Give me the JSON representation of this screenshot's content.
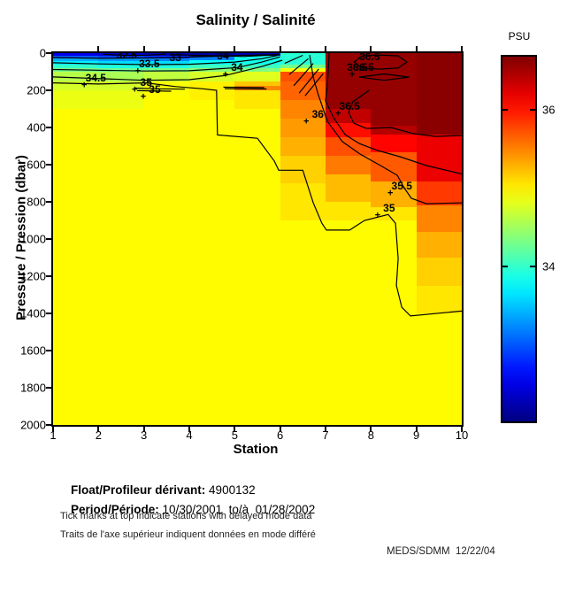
{
  "figure": {
    "footer": {
      "float_label": "Float/Profileur dérivant:",
      "float_value": " 4900132",
      "period_label": "Period/Période:",
      "period_value": " 10/30/2001  to/à  01/28/2002",
      "note_en": "Tick marks at top indicate stations with delayed mode data",
      "note_fr": "Traits de l'axe supérieur indiquent données en mode différé",
      "credit": "MEDS/SDMM  12/22/04"
    }
  },
  "chart_data": {
    "type": "heatmap",
    "title": "Salinity / Salinité",
    "xlabel": "Station",
    "ylabel": "Pressure / Pression (dbar)",
    "xlim": [
      1,
      10
    ],
    "ylim": [
      0,
      2000
    ],
    "x_ticks": [
      1,
      2,
      3,
      4,
      5,
      6,
      7,
      8,
      9,
      10
    ],
    "y_ticks": [
      0,
      200,
      400,
      600,
      800,
      1000,
      1200,
      1400,
      1600,
      1800,
      2000
    ],
    "delayed_mode_top_ticks": [
      2,
      3,
      4,
      5,
      6,
      7,
      8,
      9,
      10
    ],
    "colorbar": {
      "label": "PSU",
      "ticks": [
        36,
        34
      ],
      "min": 32.0,
      "max": 36.7,
      "colormap": "jet"
    },
    "units": "PSU",
    "columns": [
      {
        "station_span": [
          1,
          2
        ],
        "segments": [
          [
            0,
            15,
            32.5
          ],
          [
            15,
            30,
            33.0
          ],
          [
            30,
            45,
            33.4
          ],
          [
            45,
            60,
            33.7
          ],
          [
            60,
            80,
            34.0
          ],
          [
            80,
            100,
            34.3
          ],
          [
            100,
            150,
            34.6
          ],
          [
            150,
            200,
            34.75
          ],
          [
            200,
            300,
            34.85
          ],
          [
            300,
            2000,
            34.95
          ]
        ]
      },
      {
        "station_span": [
          2,
          3
        ],
        "segments": [
          [
            0,
            15,
            32.4
          ],
          [
            15,
            30,
            32.9
          ],
          [
            30,
            45,
            33.3
          ],
          [
            45,
            60,
            33.6
          ],
          [
            60,
            80,
            33.9
          ],
          [
            80,
            100,
            34.25
          ],
          [
            100,
            150,
            34.55
          ],
          [
            150,
            200,
            34.75
          ],
          [
            200,
            300,
            34.85
          ],
          [
            300,
            2000,
            34.95
          ]
        ]
      },
      {
        "station_span": [
          3,
          4
        ],
        "segments": [
          [
            0,
            15,
            32.3
          ],
          [
            15,
            30,
            32.8
          ],
          [
            30,
            45,
            33.2
          ],
          [
            45,
            60,
            33.6
          ],
          [
            60,
            80,
            33.9
          ],
          [
            80,
            100,
            34.3
          ],
          [
            100,
            150,
            34.65
          ],
          [
            150,
            200,
            34.9
          ],
          [
            200,
            2000,
            34.95
          ]
        ]
      },
      {
        "station_span": [
          4,
          5
        ],
        "segments": [
          [
            0,
            20,
            32.15
          ],
          [
            20,
            40,
            33.2
          ],
          [
            40,
            60,
            33.8
          ],
          [
            60,
            80,
            34.05
          ],
          [
            80,
            100,
            34.4
          ],
          [
            100,
            150,
            34.75
          ],
          [
            150,
            250,
            35.0
          ],
          [
            250,
            2000,
            34.95
          ]
        ]
      },
      {
        "station_span": [
          5,
          6
        ],
        "segments": [
          [
            0,
            15,
            32.3
          ],
          [
            15,
            60,
            33.85
          ],
          [
            60,
            80,
            34.05
          ],
          [
            80,
            100,
            34.35
          ],
          [
            100,
            150,
            34.8
          ],
          [
            150,
            175,
            35.2
          ],
          [
            175,
            200,
            35.5
          ],
          [
            200,
            300,
            35.05
          ],
          [
            300,
            2000,
            34.95
          ]
        ]
      },
      {
        "station_span": [
          6,
          7
        ],
        "segments": [
          [
            0,
            60,
            33.95
          ],
          [
            60,
            80,
            34.3
          ],
          [
            80,
            100,
            34.9
          ],
          [
            100,
            150,
            35.75
          ],
          [
            150,
            250,
            35.65
          ],
          [
            250,
            350,
            35.5
          ],
          [
            350,
            450,
            35.4
          ],
          [
            450,
            550,
            35.3
          ],
          [
            550,
            700,
            35.15
          ],
          [
            700,
            900,
            35.05
          ],
          [
            900,
            2000,
            34.95
          ]
        ]
      },
      {
        "station_span": [
          7,
          8
        ],
        "segments": [
          [
            0,
            300,
            36.6
          ],
          [
            300,
            375,
            36.4
          ],
          [
            375,
            450,
            36.05
          ],
          [
            450,
            550,
            35.75
          ],
          [
            550,
            650,
            35.55
          ],
          [
            650,
            800,
            35.25
          ],
          [
            800,
            900,
            35.05
          ],
          [
            900,
            2000,
            34.95
          ]
        ]
      },
      {
        "station_span": [
          8,
          9
        ],
        "segments": [
          [
            0,
            390,
            36.6
          ],
          [
            390,
            440,
            36.45
          ],
          [
            440,
            535,
            36.1
          ],
          [
            535,
            690,
            35.7
          ],
          [
            690,
            830,
            35.3
          ],
          [
            830,
            900,
            35.05
          ],
          [
            900,
            2000,
            34.95
          ]
        ]
      },
      {
        "station_span": [
          9,
          10
        ],
        "segments": [
          [
            0,
            440,
            36.65
          ],
          [
            440,
            690,
            36.2
          ],
          [
            690,
            820,
            35.85
          ],
          [
            820,
            960,
            35.5
          ],
          [
            960,
            1100,
            35.3
          ],
          [
            1100,
            1250,
            35.15
          ],
          [
            1250,
            1400,
            35.05
          ],
          [
            1400,
            2000,
            34.95
          ]
        ]
      }
    ],
    "contours": [
      {
        "level": 32.5,
        "points": [
          [
            2.1,
            6
          ],
          [
            2.62,
            13
          ],
          [
            3.1,
            11
          ],
          [
            3.5,
            5
          ]
        ]
      },
      {
        "level": 33,
        "points": [
          [
            1,
            24
          ],
          [
            2,
            28
          ],
          [
            3,
            26
          ],
          [
            3.69,
            24
          ],
          [
            4.5,
            18
          ],
          [
            5.2,
            12
          ],
          [
            5.9,
            8
          ]
        ]
      },
      {
        "level": 33.5,
        "points": [
          [
            1,
            52
          ],
          [
            2,
            58
          ],
          [
            3.12,
            62
          ],
          [
            4,
            60
          ],
          [
            5,
            48
          ],
          [
            5.6,
            30
          ],
          [
            5.95,
            12
          ]
        ]
      },
      {
        "level": 34,
        "points": [
          [
            3.6,
            8
          ],
          [
            4.3,
            13
          ],
          [
            4.74,
            15
          ],
          [
            5.2,
            18
          ],
          [
            5.7,
            12
          ],
          [
            6.0,
            6
          ]
        ]
      },
      {
        "level": 34,
        "points": [
          [
            1,
            88
          ],
          [
            2,
            92
          ],
          [
            3,
            96
          ],
          [
            4,
            95
          ],
          [
            5.05,
            78
          ],
          [
            5.6,
            48
          ],
          [
            6.0,
            20
          ]
        ]
      },
      {
        "level": 34.5,
        "points": [
          [
            1,
            128
          ],
          [
            1.94,
            136
          ],
          [
            3,
            146
          ],
          [
            4,
            143
          ],
          [
            4.8,
            120
          ],
          [
            5.6,
            72
          ],
          [
            6.05,
            38
          ]
        ]
      },
      {
        "level": 35,
        "points": [
          [
            1,
            160
          ],
          [
            2,
            166
          ],
          [
            3.05,
            160
          ],
          [
            3.7,
            180
          ],
          [
            4.3,
            192
          ],
          [
            4.6,
            200
          ],
          [
            4.62,
            440
          ],
          [
            5.5,
            458
          ],
          [
            5.87,
            580
          ],
          [
            5.97,
            630
          ],
          [
            6.5,
            630
          ],
          [
            6.73,
            805
          ],
          [
            6.92,
            915
          ],
          [
            7.02,
            952
          ],
          [
            7.53,
            952
          ],
          [
            7.86,
            900
          ],
          [
            8.38,
            868
          ],
          [
            8.54,
            915
          ],
          [
            8.6,
            1105
          ],
          [
            8.56,
            1250
          ],
          [
            8.68,
            1367
          ],
          [
            8.87,
            1414
          ],
          [
            10,
            1387
          ]
        ]
      },
      {
        "level": 35,
        "points": [
          [
            2.8,
            188
          ],
          [
            3.24,
            192
          ],
          [
            3.9,
            194
          ]
        ]
      },
      {
        "level": 35,
        "points": [
          [
            2.85,
            202
          ],
          [
            3.6,
            205
          ]
        ]
      },
      {
        "level": 35.5,
        "points": [
          [
            4.75,
            183
          ],
          [
            5.65,
            185
          ]
        ]
      },
      {
        "level": 35.5,
        "points": [
          [
            4.78,
            191
          ],
          [
            5.7,
            193
          ]
        ]
      },
      {
        "level": 34.5,
        "points": [
          [
            6.1,
            55
          ],
          [
            6.5,
            12
          ]
        ]
      },
      {
        "level": 35,
        "points": [
          [
            6.2,
            115
          ],
          [
            6.62,
            30
          ]
        ]
      },
      {
        "level": 35.5,
        "points": [
          [
            6.3,
            175
          ],
          [
            6.73,
            55
          ]
        ]
      },
      {
        "level": 36,
        "points": [
          [
            6.42,
            215
          ],
          [
            6.85,
            85
          ]
        ]
      },
      {
        "level": 36,
        "points": [
          [
            6.55,
            230
          ],
          [
            6.95,
            110
          ]
        ]
      },
      {
        "level": 36,
        "points": [
          [
            7.08,
            0
          ],
          [
            7.04,
            175
          ],
          [
            7.0,
            257
          ],
          [
            7.18,
            348
          ],
          [
            7.43,
            438
          ],
          [
            7.74,
            486
          ],
          [
            8.15,
            524
          ],
          [
            8.64,
            557
          ],
          [
            9.22,
            605
          ],
          [
            10,
            650
          ]
        ]
      },
      {
        "level": 36.5,
        "points": [
          [
            7.96,
            200
          ],
          [
            7.6,
            262
          ],
          [
            7.51,
            320
          ],
          [
            7.62,
            376
          ],
          [
            7.9,
            405
          ],
          [
            8.44,
            400
          ],
          [
            8.93,
            433
          ],
          [
            9.42,
            448
          ],
          [
            10,
            443
          ]
        ]
      },
      {
        "level": 36.5,
        "points": [
          [
            7.63,
            48
          ],
          [
            7.8,
            15
          ],
          [
            8.2,
            10
          ],
          [
            8.6,
            15
          ],
          [
            8.79,
            48
          ],
          [
            8.6,
            80
          ],
          [
            8.2,
            86
          ],
          [
            7.8,
            80
          ],
          [
            7.63,
            48
          ]
        ]
      },
      {
        "level": 36.5,
        "points": [
          [
            7.74,
            129
          ],
          [
            8.29,
            112
          ],
          [
            8.84,
            129
          ],
          [
            8.29,
            146
          ],
          [
            7.74,
            129
          ]
        ]
      },
      {
        "level": 35.5,
        "points": [
          [
            6.65,
            10
          ],
          [
            6.73,
            130
          ],
          [
            6.84,
            224
          ],
          [
            7.04,
            367
          ],
          [
            7.37,
            476
          ],
          [
            7.76,
            543
          ],
          [
            8.21,
            605
          ],
          [
            8.58,
            657
          ],
          [
            8.73,
            724
          ],
          [
            8.89,
            781
          ],
          [
            9.22,
            810
          ],
          [
            10,
            805
          ]
        ]
      }
    ],
    "contour_labels": [
      {
        "text": "32.5",
        "station": 2.62,
        "pressure": 10,
        "plus": false
      },
      {
        "text": "33",
        "station": 3.69,
        "pressure": 26,
        "plus": false
      },
      {
        "text": "33.5",
        "station": 3.12,
        "pressure": 58,
        "plus": true
      },
      {
        "text": "34",
        "station": 4.74,
        "pressure": 14,
        "plus": false
      },
      {
        "text": "34",
        "station": 5.05,
        "pressure": 76,
        "plus": true
      },
      {
        "text": "34.5",
        "station": 1.94,
        "pressure": 133,
        "plus": true
      },
      {
        "text": "35",
        "station": 3.05,
        "pressure": 158,
        "plus": true
      },
      {
        "text": "35",
        "station": 3.24,
        "pressure": 196,
        "plus": true
      },
      {
        "text": "36.5",
        "station": 7.97,
        "pressure": 20,
        "plus": false
      },
      {
        "text": "36.5",
        "station": 7.7,
        "pressure": 74,
        "plus": false
      },
      {
        "text": "36.5",
        "station": 7.84,
        "pressure": 78,
        "plus": true
      },
      {
        "text": "36.5",
        "station": 7.53,
        "pressure": 288,
        "plus": true
      },
      {
        "text": "36",
        "station": 6.83,
        "pressure": 330,
        "plus": true
      },
      {
        "text": "35.5",
        "station": 8.68,
        "pressure": 716,
        "plus": true
      },
      {
        "text": "35",
        "station": 8.4,
        "pressure": 835,
        "plus": true
      }
    ]
  }
}
